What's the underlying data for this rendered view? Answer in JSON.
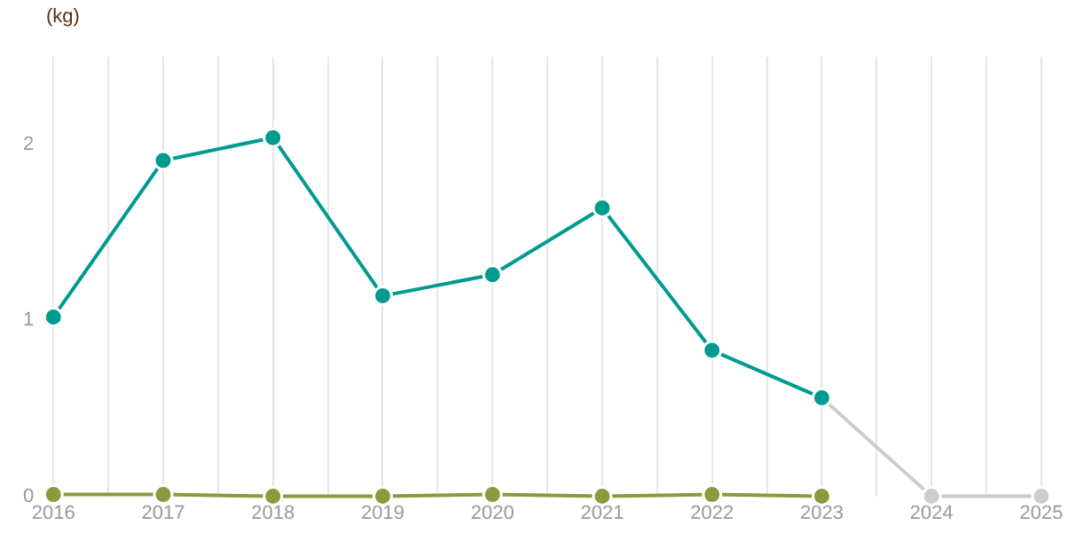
{
  "chart_data": {
    "type": "line",
    "ylabel": "(kg)",
    "x": [
      2016,
      2017,
      2018,
      2019,
      2020,
      2021,
      2022,
      2023,
      2024,
      2025
    ],
    "series": [
      {
        "color": "#8a9a3c",
        "values": [
          0.01,
          0.01,
          0,
          0,
          0.01,
          0,
          0.01,
          0,
          null,
          null
        ]
      },
      {
        "color": "#cccccc",
        "values": [
          null,
          null,
          null,
          null,
          null,
          null,
          null,
          0.56,
          0,
          0
        ]
      },
      {
        "color": "#009b8f",
        "values": [
          1.02,
          1.91,
          2.04,
          1.14,
          1.26,
          1.64,
          0.83,
          0.56,
          null,
          null
        ]
      }
    ],
    "xlim": [
      2016,
      2025
    ],
    "xticks": [
      2016,
      {
        "value": 2016.5,
        "label": null
      },
      2017,
      {
        "value": 2017.5,
        "label": null
      },
      2018,
      {
        "value": 2018.5,
        "label": null
      },
      2019,
      {
        "value": 2019.5,
        "label": null
      },
      2020,
      {
        "value": 2020.5,
        "label": null
      },
      2021,
      {
        "value": 2021.5,
        "label": null
      },
      2022,
      {
        "value": 2022.5,
        "label": null
      },
      2023,
      {
        "value": 2023.5,
        "label": null
      },
      2024,
      {
        "value": 2024.5,
        "label": null
      },
      2025
    ],
    "ylim": [
      0,
      2.5
    ],
    "yticks": [
      0,
      1,
      2
    ],
    "grid": "x",
    "legend": false,
    "marker": "circle",
    "line_style": "solid"
  }
}
